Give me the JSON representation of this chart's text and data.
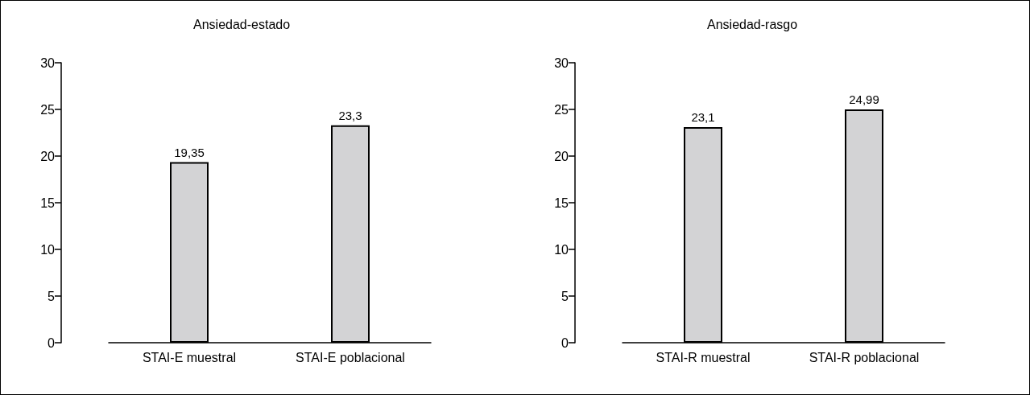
{
  "chart_data": [
    {
      "type": "bar",
      "title": "Ansiedad-estado",
      "categories": [
        "STAI-E muestral",
        "STAI-E poblacional"
      ],
      "values": [
        19.35,
        23.3
      ],
      "value_labels": [
        "19,35",
        "23,3"
      ],
      "color": "#d3d3d5",
      "ylim": [
        0,
        30
      ],
      "yticks": [
        0,
        5,
        10,
        15,
        20,
        25,
        30
      ]
    },
    {
      "type": "bar",
      "title": "Ansiedad-rasgo",
      "categories": [
        "STAI-R muestral",
        "STAI-R poblacional"
      ],
      "values": [
        23.1,
        24.99
      ],
      "value_labels": [
        "23,1",
        "24,99"
      ],
      "color": "#d3d3d5",
      "ylim": [
        0,
        30
      ],
      "yticks": [
        0,
        5,
        10,
        15,
        20,
        25,
        30
      ]
    }
  ]
}
